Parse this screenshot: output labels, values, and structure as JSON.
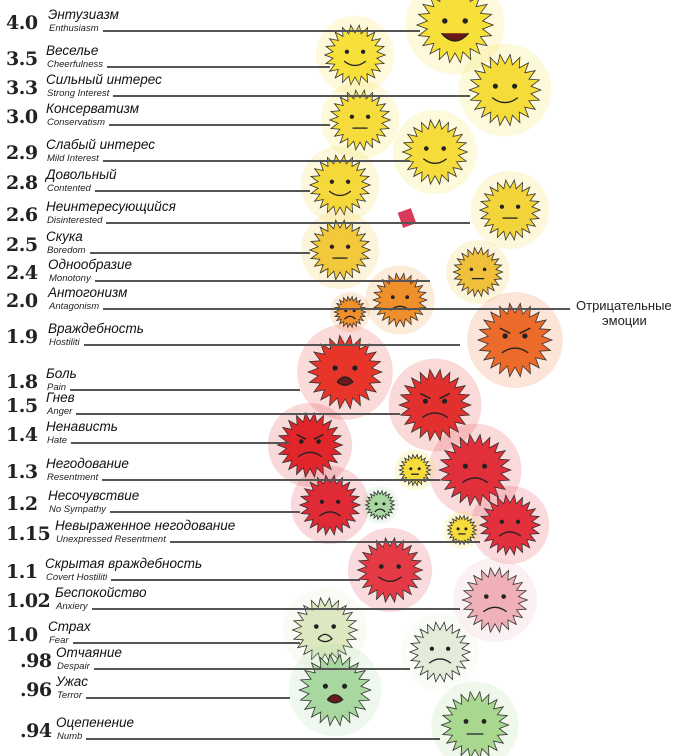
{
  "levels": [
    {
      "value": "4.0",
      "ru": "Энтузиазм",
      "en": "Enthusiasm",
      "color": "#f7e03a"
    },
    {
      "value": "3.5",
      "ru": "Веселье",
      "en": "Cheerfulness",
      "color": "#f7e03a"
    },
    {
      "value": "3.3",
      "ru": "Сильный интерес",
      "en": "Strong Interest",
      "color": "#f5dc3a"
    },
    {
      "value": "3.0",
      "ru": "Консерватизм",
      "en": "Conservatism",
      "color": "#f5dc3a"
    },
    {
      "value": "2.9",
      "ru": "Слабый интерес",
      "en": "Mild Interest",
      "color": "#f5dc3a"
    },
    {
      "value": "2.8",
      "ru": "Довольный",
      "en": "Contented",
      "color": "#f5d83a"
    },
    {
      "value": "2.6",
      "ru": "Неинтересующийся",
      "en": "Disinterested",
      "color": "#f2d53a"
    },
    {
      "value": "2.5",
      "ru": "Скука",
      "en": "Boredom",
      "color": "#f2c93a"
    },
    {
      "value": "2.4",
      "ru": "Однообразие",
      "en": "Monotony",
      "color": "#f0c03a"
    },
    {
      "value": "2.0",
      "ru": "Антогонизм",
      "en": "Antagonism",
      "color": "#f0902a"
    },
    {
      "value": "1.9",
      "ru": "Враждебность",
      "en": "Hostiliti",
      "color": "#ec6a2a"
    },
    {
      "value": "1.8",
      "ru": "Боль",
      "en": "Pain",
      "color": "#e8352a"
    },
    {
      "value": "1.5",
      "ru": "Гнев",
      "en": "Anger",
      "color": "#e2302e"
    },
    {
      "value": "1.4",
      "ru": "Ненависть",
      "en": "Hate",
      "color": "#e0262a"
    },
    {
      "value": "1.3",
      "ru": "Негодование",
      "en": "Resentment",
      "color": "#e2303a"
    },
    {
      "value": "1.2",
      "ru": "Несочувствие",
      "en": "No Sympathy",
      "color": "#e02a35"
    },
    {
      "value": "1.15",
      "ru": "Невыраженное негодование",
      "en": "Unexpressed Resentment",
      "color": "#e3303c"
    },
    {
      "value": "1.1",
      "ru": "Скрытая враждебность",
      "en": "Covert Hostiliti",
      "color": "#e33a45"
    },
    {
      "value": "1.02",
      "ru": "Беспокойство",
      "en": "Anxiery",
      "color": "#f0b0b8"
    },
    {
      "value": "1.0",
      "ru": "Страх",
      "en": "Fear",
      "color": "#dde8c0"
    },
    {
      "value": ".98",
      "ru": "Отчаяние",
      "en": "Despair",
      "color": "#e3ecd8"
    },
    {
      "value": ".96",
      "ru": "Ужас",
      "en": "Terror",
      "color": "#a8d8a0"
    },
    {
      "value": ".94",
      "ru": "Оцепенение",
      "en": "Numb",
      "color": "#a8d890"
    }
  ],
  "annotation": {
    "line1": "Отрицательные",
    "line2": "эмоции"
  }
}
